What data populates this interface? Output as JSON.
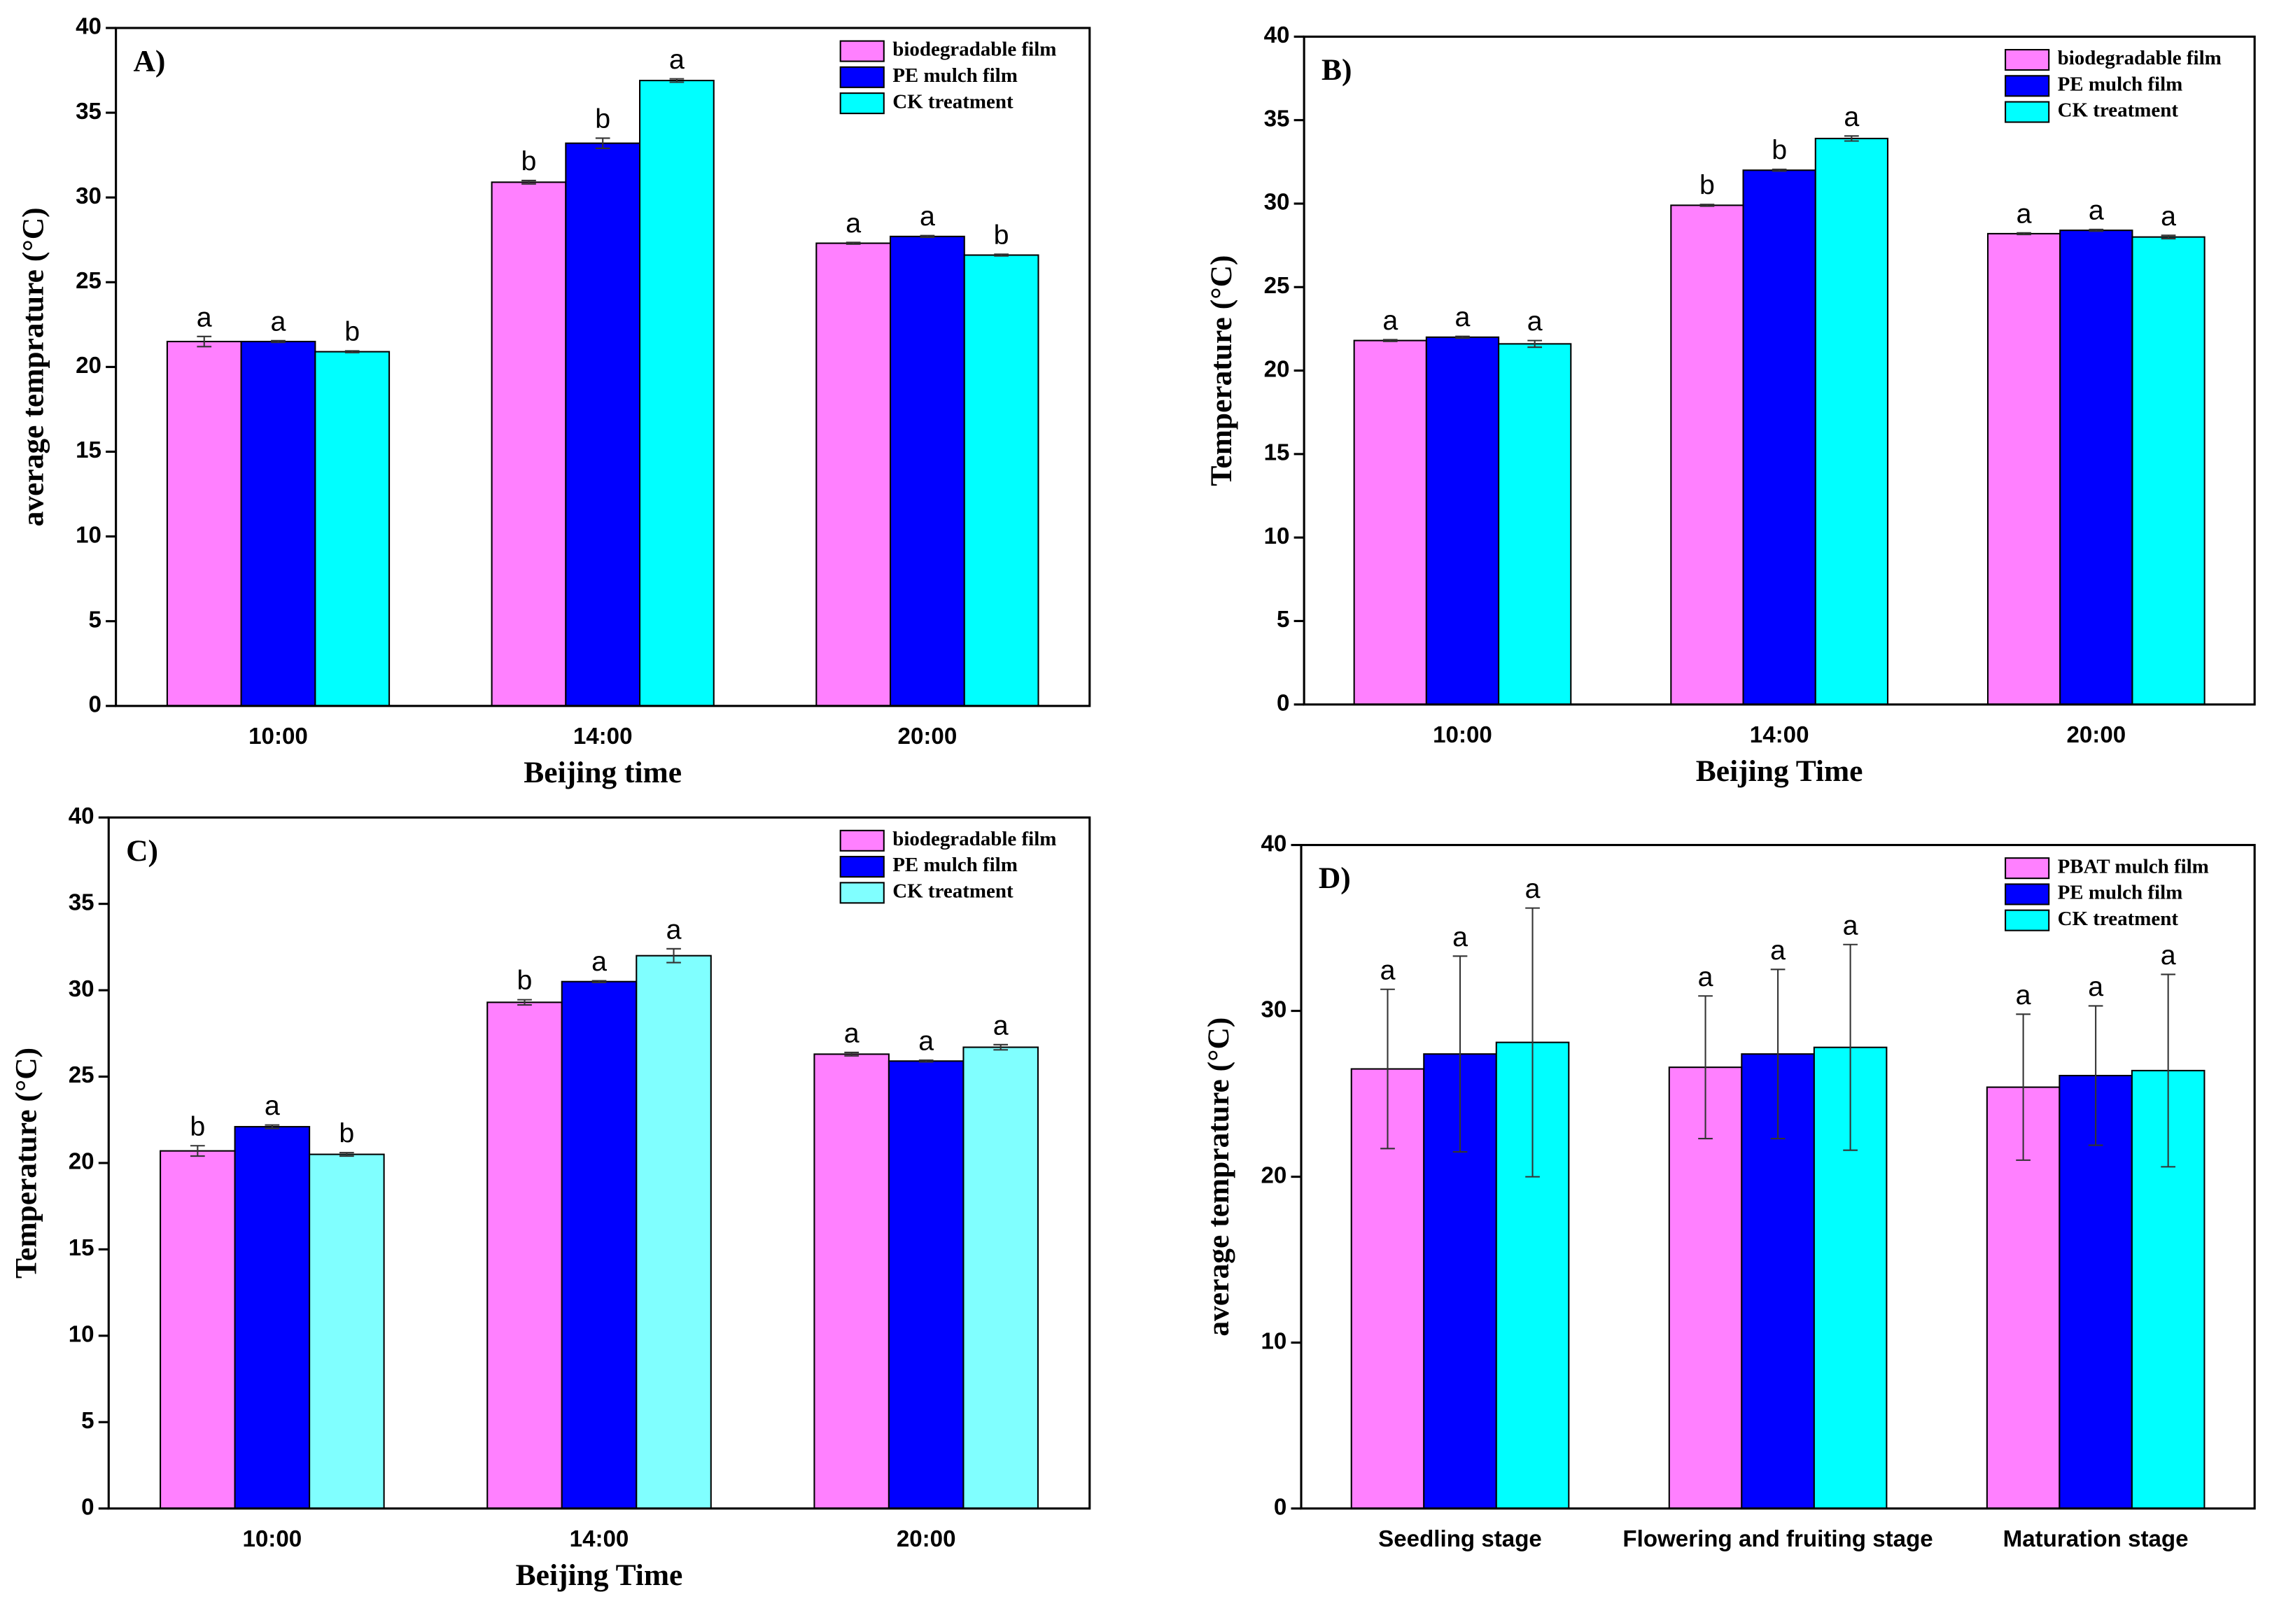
{
  "chart_data": [
    {
      "type": "bar",
      "panel": "A)",
      "xlabel": "Beijing time",
      "ylabel": "average temprature (°C)",
      "categories": [
        "10:00",
        "14:00",
        "20:00"
      ],
      "ylim": [
        0,
        40
      ],
      "yticks": [
        0,
        5,
        10,
        15,
        20,
        25,
        30,
        35,
        40
      ],
      "series": [
        {
          "name": "biodegradable film",
          "color": "#ff80ff",
          "values": [
            21.5,
            30.9,
            27.3
          ],
          "errors": [
            0.3,
            0.1,
            0.05
          ],
          "annotations": [
            "a",
            "b",
            "a"
          ]
        },
        {
          "name": "PE mulch film",
          "color": "#0000ff",
          "values": [
            21.5,
            33.2,
            27.7
          ],
          "errors": [
            0.05,
            0.3,
            0.05
          ],
          "annotations": [
            "a",
            "b",
            "a"
          ]
        },
        {
          "name": "CK treatment",
          "color": "#00ffff",
          "values": [
            20.9,
            36.9,
            26.6
          ],
          "errors": [
            0.05,
            0.1,
            0.05
          ],
          "annotations": [
            "b",
            "a",
            "b"
          ]
        }
      ]
    },
    {
      "type": "bar",
      "panel": "B)",
      "xlabel": "Beijing Time",
      "ylabel": "Temperature (°C)",
      "categories": [
        "10:00",
        "14:00",
        "20:00"
      ],
      "ylim": [
        0,
        40
      ],
      "yticks": [
        0,
        5,
        10,
        15,
        20,
        25,
        30,
        35,
        40
      ],
      "series": [
        {
          "name": "biodegradable film",
          "color": "#ff80ff",
          "values": [
            21.8,
            29.9,
            28.2
          ],
          "errors": [
            0.05,
            0.05,
            0.05
          ],
          "annotations": [
            "a",
            "b",
            "a"
          ]
        },
        {
          "name": "PE mulch film",
          "color": "#0000ff",
          "values": [
            22.0,
            32.0,
            28.4
          ],
          "errors": [
            0.05,
            0.05,
            0.05
          ],
          "annotations": [
            "a",
            "b",
            "a"
          ]
        },
        {
          "name": "CK treatment",
          "color": "#00ffff",
          "values": [
            21.6,
            33.9,
            28.0
          ],
          "errors": [
            0.2,
            0.15,
            0.1
          ],
          "annotations": [
            "a",
            "a",
            "a"
          ]
        }
      ]
    },
    {
      "type": "bar",
      "panel": "C)",
      "xlabel": "Beijing Time",
      "ylabel": "Temperature (°C)",
      "categories": [
        "10:00",
        "14:00",
        "20:00"
      ],
      "ylim": [
        0,
        40
      ],
      "yticks": [
        0,
        5,
        10,
        15,
        20,
        25,
        30,
        35,
        40
      ],
      "series": [
        {
          "name": "biodegradable film",
          "color": "#ff80ff",
          "values": [
            20.7,
            29.3,
            26.3
          ],
          "errors": [
            0.3,
            0.15,
            0.1
          ],
          "annotations": [
            "b",
            "b",
            "a"
          ]
        },
        {
          "name": "PE mulch film",
          "color": "#0000ff",
          "values": [
            22.1,
            30.5,
            25.9
          ],
          "errors": [
            0.1,
            0.05,
            0.05
          ],
          "annotations": [
            "a",
            "a",
            "a"
          ]
        },
        {
          "name": "CK treatment",
          "color": "#80ffff",
          "values": [
            20.5,
            32.0,
            26.7
          ],
          "errors": [
            0.1,
            0.4,
            0.15
          ],
          "annotations": [
            "b",
            "a",
            "a"
          ]
        }
      ]
    },
    {
      "type": "bar",
      "panel": "D)",
      "ylabel": "average temprature (°C)",
      "categories": [
        "Seedling stage",
        "Flowering and fruiting stage",
        "Maturation stage"
      ],
      "ylim": [
        0,
        40
      ],
      "yticks": [
        0,
        10,
        20,
        30,
        40
      ],
      "series": [
        {
          "name": "PBAT mulch film",
          "color": "#ff80ff",
          "values": [
            26.5,
            26.6,
            25.4
          ],
          "errors": [
            4.8,
            4.3,
            4.4
          ],
          "annotations": [
            "a",
            "a",
            "a"
          ]
        },
        {
          "name": "PE mulch film",
          "color": "#0000ff",
          "values": [
            27.4,
            27.4,
            26.1
          ],
          "errors": [
            5.9,
            5.1,
            4.2
          ],
          "annotations": [
            "a",
            "a",
            "a"
          ]
        },
        {
          "name": "CK treatment",
          "color": "#00ffff",
          "values": [
            28.1,
            27.8,
            26.4
          ],
          "errors": [
            8.1,
            6.2,
            5.8
          ],
          "annotations": [
            "a",
            "a",
            "a"
          ]
        }
      ]
    }
  ]
}
